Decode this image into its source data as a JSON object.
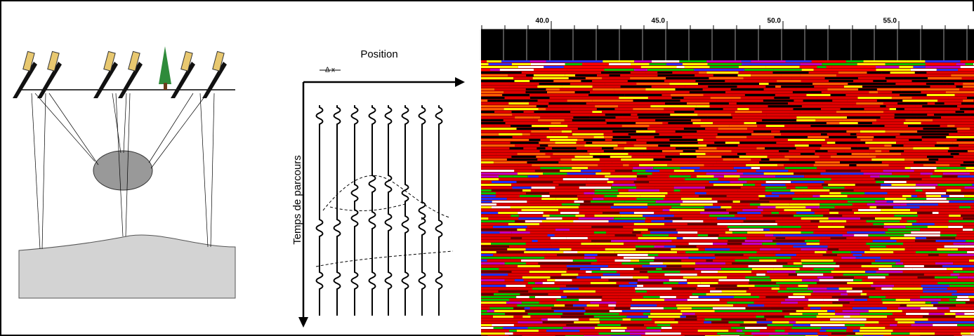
{
  "diagram": {
    "position_label": "Position",
    "dx_label": "Δ x",
    "time_label": "Temps de parcours",
    "ruler_ticks": [
      {
        "value": 40,
        "label": "40.0"
      },
      {
        "value": 45,
        "label": "45.0"
      },
      {
        "value": 50,
        "label": "50.0"
      },
      {
        "value": 55,
        "label": "55.0"
      }
    ]
  }
}
